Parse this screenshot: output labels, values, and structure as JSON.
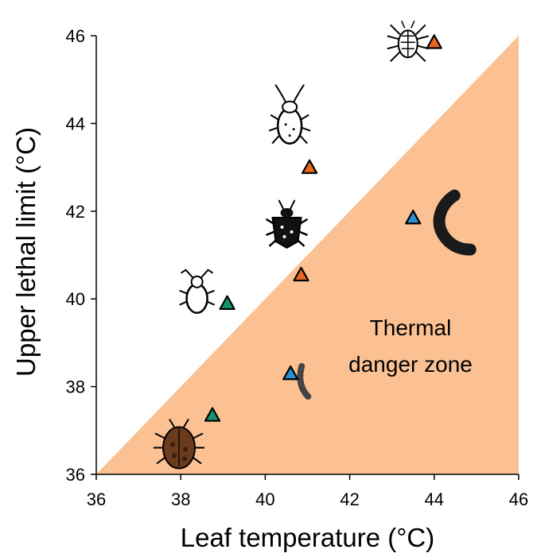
{
  "chart_data": {
    "type": "scatter",
    "xlabel": "Leaf temperature (°C)",
    "ylabel": "Upper lethal limit (°C)",
    "xlim": [
      36,
      46
    ],
    "ylim": [
      36,
      46
    ],
    "xticks": [
      "36",
      "38",
      "40",
      "42",
      "44",
      "46"
    ],
    "yticks": [
      "36",
      "38",
      "40",
      "42",
      "44",
      "46"
    ],
    "grid": false,
    "zone": {
      "label_lines": [
        "Thermal",
        "danger zone"
      ],
      "color": "#fbc193",
      "boundary": "y = x (region below diagonal)"
    },
    "points": [
      {
        "x": 44.0,
        "y": 45.85,
        "color": "#e8661e",
        "icon": "mite-icon"
      },
      {
        "x": 41.05,
        "y": 43.0,
        "color": "#e8661e",
        "icon": "bug-icon"
      },
      {
        "x": 40.85,
        "y": 40.55,
        "color": "#e8661e",
        "icon": "stink-bug-icon"
      },
      {
        "x": 43.5,
        "y": 41.85,
        "color": "#2b8fd1",
        "icon": "caterpillar-icon"
      },
      {
        "x": 40.6,
        "y": 38.3,
        "color": "#2b8fd1",
        "icon": "small-caterpillar-icon"
      },
      {
        "x": 39.1,
        "y": 39.9,
        "color": "#15946b",
        "icon": "aphid-icon"
      },
      {
        "x": 38.75,
        "y": 37.35,
        "color": "#15946b",
        "icon": "beetle-icon"
      }
    ],
    "colors": {
      "orange": "#e8661e",
      "blue": "#2b8fd1",
      "green": "#15946b",
      "zone": "#fbc193"
    }
  }
}
